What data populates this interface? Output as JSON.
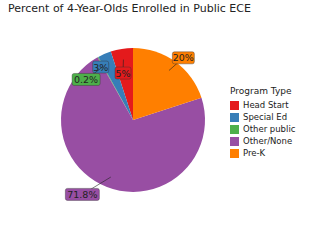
{
  "chart_data": {
    "type": "pie",
    "title": "Percent of 4-Year-Olds Enrolled in Public ECE",
    "legend_title": "Program Type",
    "categories": [
      "Head Start",
      "Special Ed",
      "Other public",
      "Other/None",
      "Pre-K"
    ],
    "values": [
      5,
      3,
      0.2,
      71.8,
      20
    ],
    "value_labels": [
      "5%",
      "3%",
      "0.2%",
      "71.8%",
      "20%"
    ],
    "colors": [
      "#e41a1c",
      "#377eb8",
      "#4daf4a",
      "#984ea3",
      "#ff7f00"
    ],
    "data_labels": true,
    "legend": "right"
  }
}
